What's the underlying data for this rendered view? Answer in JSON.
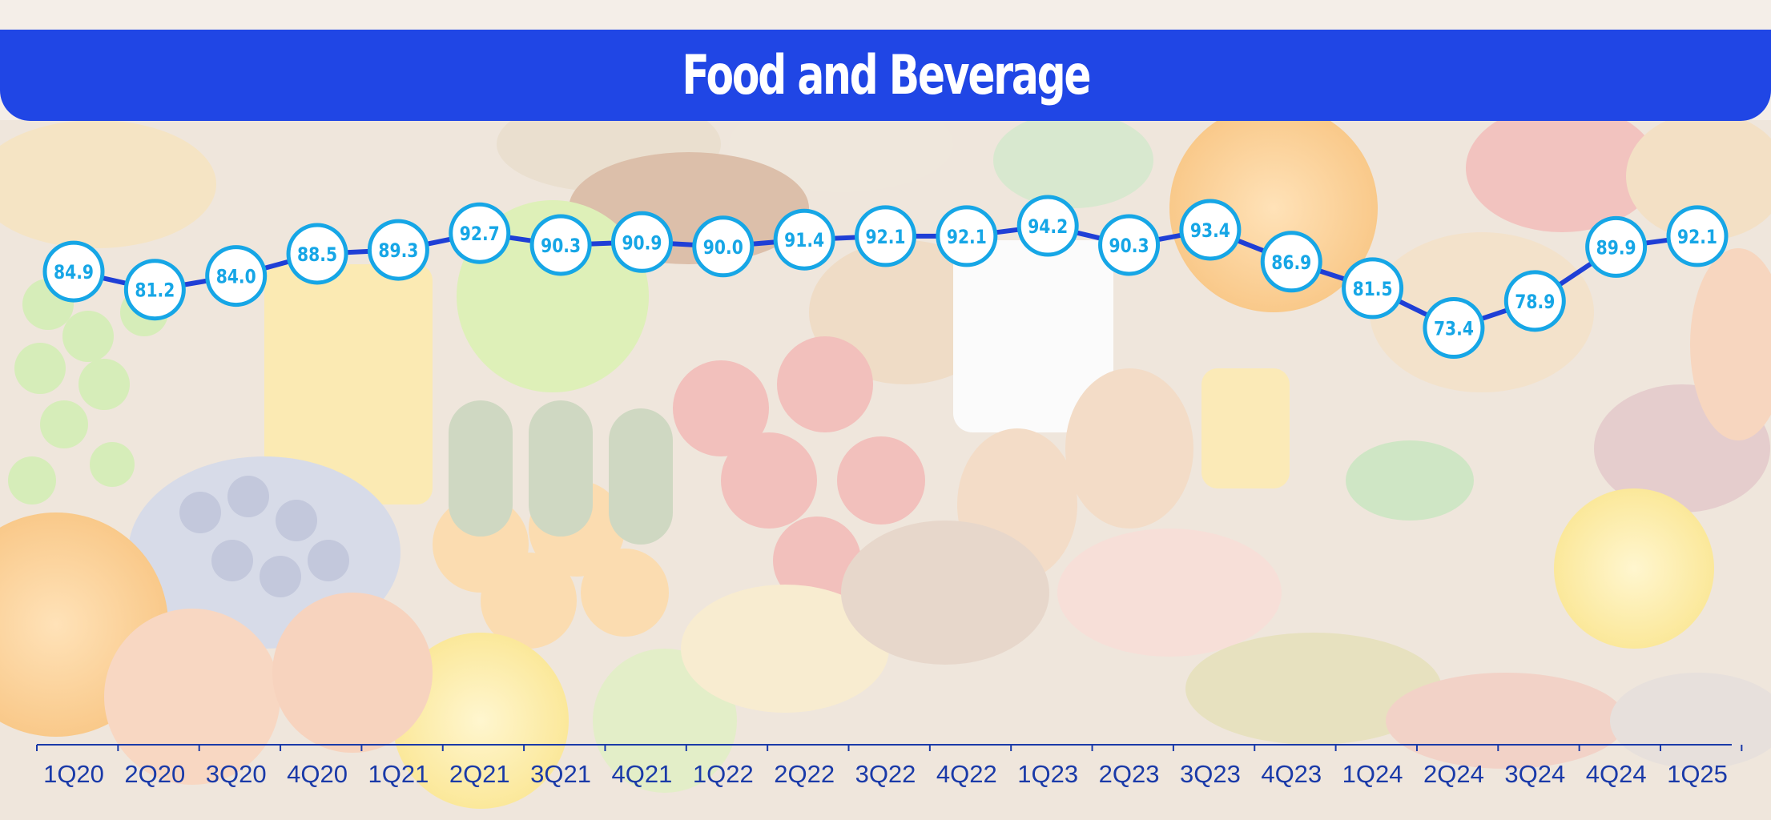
{
  "chart_data": {
    "type": "line",
    "title": "Food and Beverage",
    "xlabel": "",
    "ylabel": "",
    "categories": [
      "1Q20",
      "2Q20",
      "3Q20",
      "4Q20",
      "1Q21",
      "2Q21",
      "3Q21",
      "4Q21",
      "1Q22",
      "2Q22",
      "3Q22",
      "4Q22",
      "1Q23",
      "2Q23",
      "3Q23",
      "4Q23",
      "1Q24",
      "2Q24",
      "3Q24",
      "4Q24",
      "1Q25"
    ],
    "series": [
      {
        "values": [
          84.9,
          81.2,
          84.0,
          88.5,
          89.3,
          92.7,
          90.3,
          90.9,
          90.0,
          91.4,
          92.1,
          92.1,
          94.2,
          90.3,
          93.4,
          86.9,
          81.5,
          73.4,
          78.9,
          89.9,
          92.1
        ],
        "labels": [
          "84.9",
          "81.2",
          "84.0",
          "88.5",
          "89.3",
          "92.7",
          "90.3",
          "90.9",
          "90.0",
          "91.4",
          "92.1",
          "92.1",
          "94.2",
          "90.3",
          "93.4",
          "86.9",
          "81.5",
          "73.4",
          "78.9",
          "89.9",
          "92.1"
        ]
      }
    ],
    "ylim": [
      70,
      97
    ],
    "grid": false,
    "legend": "none",
    "data_labels": "inside circular markers",
    "colors": {
      "banner": "#2046e5",
      "line": "#1f3fd6",
      "marker_stroke": "#16a6e6",
      "marker_fill": "#ffffff",
      "axis": "#1a3aa8",
      "tick_text": "#1a3aa8"
    }
  }
}
